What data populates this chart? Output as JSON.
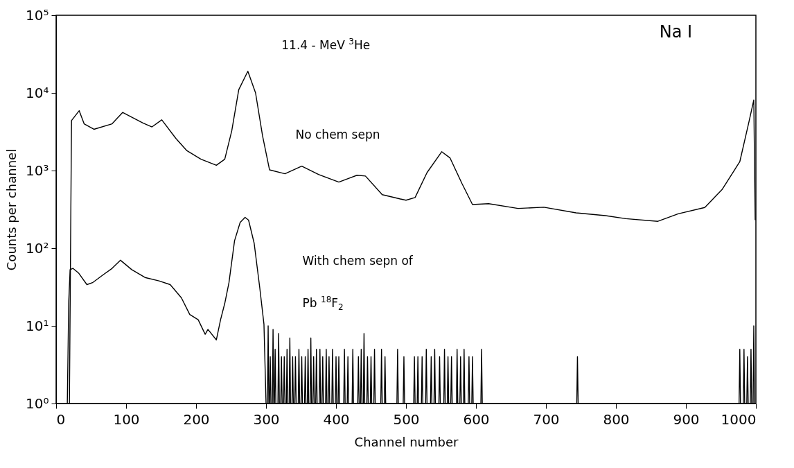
{
  "chart_data": {
    "type": "line",
    "xlabel": "Channel number",
    "ylabel": "Counts per channel",
    "log": "y",
    "xlim": [
      0,
      1000
    ],
    "xticks": [
      0,
      100,
      200,
      300,
      400,
      500,
      600,
      700,
      800,
      900,
      1000
    ],
    "ylim": [
      1,
      100000
    ],
    "yticks": [
      {
        "value": 1,
        "label": "10⁰"
      },
      {
        "value": 10,
        "label": "10¹"
      },
      {
        "value": 100,
        "label": "10²"
      },
      {
        "value": 1000,
        "label": "10³"
      },
      {
        "value": 10000,
        "label": "10⁴"
      },
      {
        "value": 100000,
        "label": "10⁵"
      }
    ],
    "annotations": [
      "11.4 - MeV $^{3}$He",
      "Na I"
    ],
    "series": [
      {
        "name": "No chem sepn",
        "color": "#000000",
        "x": [
          19,
          22,
          33,
          40,
          54,
          80,
          95,
          124,
          137,
          151,
          171,
          187,
          207,
          229,
          241,
          251,
          261,
          274,
          285,
          295,
          305,
          327,
          351,
          375,
          404,
          430,
          442,
          466,
          492,
          500,
          513,
          530,
          551,
          563,
          580,
          595,
          618,
          660,
          697,
          743,
          785,
          814,
          860,
          889,
          927,
          952,
          977,
          990,
          997,
          999
        ],
        "values": [
          1,
          4400,
          5900,
          4000,
          3400,
          4000,
          5600,
          4100,
          3650,
          4500,
          2600,
          1800,
          1400,
          1170,
          1400,
          3250,
          11000,
          19000,
          10000,
          2800,
          1020,
          910,
          1140,
          890,
          710,
          870,
          850,
          490,
          430,
          415,
          450,
          940,
          1750,
          1450,
          680,
          365,
          375,
          325,
          337,
          285,
          263,
          240,
          222,
          277,
          335,
          575,
          1300,
          4200,
          8100,
          230
        ]
      },
      {
        "name": "With chem sepn of\nPb $^{18}$F$_{2}$",
        "color": "#000000",
        "x": [
          16,
          18,
          20,
          24,
          32,
          44,
          52,
          68,
          80,
          92,
          108,
          127,
          147,
          163,
          179,
          191,
          203,
          213,
          217,
          229,
          235,
          241,
          247,
          255,
          263,
          270,
          275,
          283,
          291,
          297,
          300,
          302,
          303,
          304,
          305,
          306,
          307,
          309,
          310,
          311,
          312,
          313,
          314,
          317,
          318,
          319,
          321,
          322,
          323,
          325,
          326,
          327,
          329,
          330,
          331,
          333,
          334,
          335,
          337,
          338,
          339,
          341,
          342,
          343,
          346,
          347,
          348,
          350,
          351,
          352,
          355,
          356,
          357,
          359,
          360,
          361,
          363,
          364,
          365,
          367,
          368,
          369,
          371,
          372,
          373,
          376,
          377,
          378,
          380,
          381,
          382,
          385,
          386,
          387,
          389,
          390,
          391,
          394,
          395,
          396,
          399,
          400,
          401,
          403,
          404,
          405,
          411,
          412,
          413,
          416,
          417,
          418,
          423,
          424,
          425,
          431,
          432,
          433,
          435,
          436,
          437,
          439,
          440,
          441,
          444,
          445,
          446,
          449,
          450,
          451,
          454,
          455,
          456,
          464,
          465,
          466,
          469,
          470,
          471,
          487,
          488,
          489,
          496,
          497,
          498,
          511,
          512,
          513,
          516,
          517,
          518,
          522,
          523,
          524,
          528,
          529,
          530,
          535,
          536,
          537,
          540,
          541,
          542,
          547,
          548,
          549,
          554,
          555,
          556,
          559,
          560,
          561,
          564,
          565,
          566,
          572,
          573,
          574,
          577,
          578,
          579,
          582,
          583,
          584,
          589,
          590,
          591,
          594,
          595,
          596,
          607,
          608,
          609,
          744,
          745,
          746,
          976,
          977,
          978,
          982,
          983,
          984,
          987,
          988,
          989,
          992,
          993,
          994,
          996,
          997,
          998
        ],
        "values": [
          1,
          20,
          53,
          55,
          48,
          34,
          36,
          46,
          55,
          70,
          53,
          42,
          38,
          34,
          23,
          14,
          12,
          7.8,
          9,
          6.6,
          12,
          19.5,
          36,
          125,
          215,
          250,
          230,
          116,
          31,
          10.5,
          1,
          1,
          10,
          1,
          1,
          4,
          1,
          1,
          9,
          1,
          1,
          5,
          1,
          1,
          8,
          1,
          1,
          4,
          1,
          1,
          4,
          1,
          1,
          5,
          1,
          1,
          7,
          1,
          1,
          4,
          1,
          1,
          4,
          1,
          1,
          5,
          1,
          1,
          4,
          1,
          1,
          4,
          1,
          1,
          5,
          1,
          1,
          7,
          1,
          1,
          4,
          1,
          1,
          5,
          1,
          1,
          5,
          1,
          1,
          4,
          1,
          1,
          5,
          1,
          1,
          4,
          1,
          1,
          5,
          1,
          1,
          4,
          1,
          1,
          4,
          1,
          1,
          5,
          1,
          1,
          4,
          1,
          1,
          5,
          1,
          1,
          4,
          1,
          1,
          5,
          1,
          1,
          8,
          1,
          1,
          4,
          1,
          1,
          4,
          1,
          1,
          5,
          1,
          1,
          5,
          1,
          1,
          4,
          1,
          1,
          5,
          1,
          1,
          4,
          1,
          1,
          4,
          1,
          1,
          4,
          1,
          1,
          4,
          1,
          1,
          5,
          1,
          1,
          4,
          1,
          1,
          5,
          1,
          1,
          4,
          1,
          1,
          5,
          1,
          1,
          4,
          1,
          1,
          4,
          1,
          1,
          5,
          1,
          1,
          4,
          1,
          1,
          5,
          1,
          1,
          4,
          1,
          1,
          4,
          1,
          1,
          5,
          1,
          1,
          4,
          1,
          1,
          5,
          1,
          1,
          5,
          1,
          1,
          4,
          1,
          1,
          5,
          1,
          1,
          10,
          1
        ]
      }
    ]
  }
}
